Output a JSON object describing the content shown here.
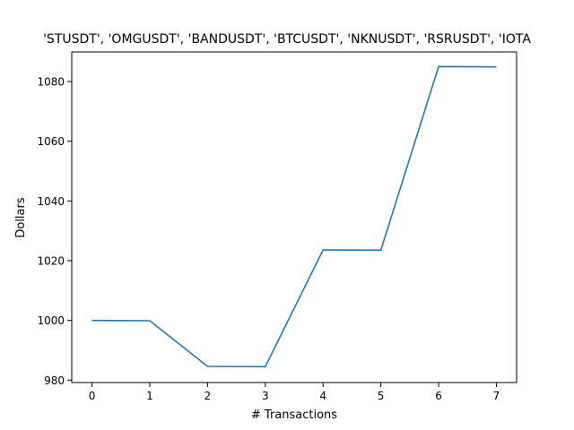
{
  "chart_data": {
    "type": "line",
    "title": "'STUSDT', 'OMGUSDT', 'BANDUSDT', 'BTCUSDT', 'NKNUSDT', 'RSRUSDT', 'IOTA",
    "xlabel": "# Transactions",
    "ylabel": "Dollars",
    "x": [
      0,
      1,
      2,
      3,
      4,
      5,
      6,
      7
    ],
    "series": [
      {
        "values": [
          1000.0,
          999.9,
          984.6,
          984.5,
          1023.6,
          1023.5,
          1085.0,
          1084.9
        ]
      }
    ],
    "xlim": [
      -0.35,
      7.35
    ],
    "ylim": [
      979.2,
      1089.9
    ],
    "xticks": [
      0,
      1,
      2,
      3,
      4,
      5,
      6,
      7
    ],
    "yticks": [
      980,
      1000,
      1020,
      1040,
      1060,
      1080
    ],
    "grid": false,
    "colors": {
      "line": "#1f77b4",
      "axes": "#000000"
    }
  }
}
